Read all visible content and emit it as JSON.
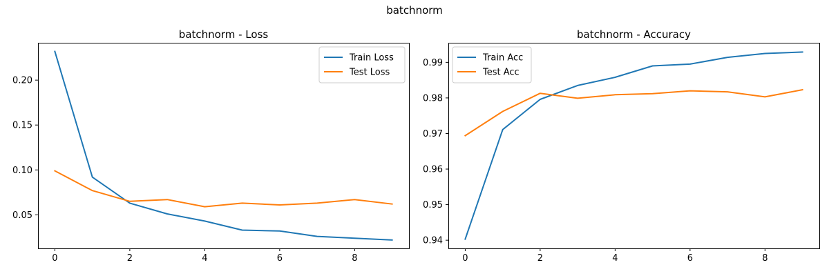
{
  "figure": {
    "title": "batchnorm"
  },
  "chart_data": [
    {
      "type": "line",
      "title": "batchnorm - Loss",
      "xlabel": "",
      "ylabel": "",
      "x": [
        0,
        1,
        2,
        3,
        4,
        5,
        6,
        7,
        8,
        9
      ],
      "xlim": [
        -0.45,
        9.45
      ],
      "ylim": [
        0.0126,
        0.2416
      ],
      "xticks": [
        0,
        2,
        4,
        6,
        8
      ],
      "yticks": [
        0.05,
        0.1,
        0.15,
        0.2
      ],
      "ytick_labels": [
        "0.05",
        "0.10",
        "0.15",
        "0.20"
      ],
      "grid": false,
      "legend_position": "upper right",
      "series": [
        {
          "name": "Train Loss",
          "color": "#1f77b4",
          "values": [
            0.232,
            0.092,
            0.063,
            0.051,
            0.043,
            0.033,
            0.032,
            0.026,
            0.024,
            0.022
          ]
        },
        {
          "name": "Test Loss",
          "color": "#ff7f0e",
          "values": [
            0.099,
            0.077,
            0.065,
            0.067,
            0.059,
            0.063,
            0.061,
            0.063,
            0.067,
            0.062
          ]
        }
      ]
    },
    {
      "type": "line",
      "title": "batchnorm - Accuracy",
      "xlabel": "",
      "ylabel": "",
      "x": [
        0,
        1,
        2,
        3,
        4,
        5,
        6,
        7,
        8,
        9
      ],
      "xlim": [
        -0.45,
        9.45
      ],
      "ylim": [
        0.9377,
        0.9955
      ],
      "xticks": [
        0,
        2,
        4,
        6,
        8
      ],
      "yticks": [
        0.94,
        0.95,
        0.96,
        0.97,
        0.98,
        0.99
      ],
      "ytick_labels": [
        "0.94",
        "0.95",
        "0.96",
        "0.97",
        "0.98",
        "0.99"
      ],
      "grid": false,
      "legend_position": "upper left",
      "series": [
        {
          "name": "Train Acc",
          "color": "#1f77b4",
          "values": [
            0.9403,
            0.9711,
            0.9796,
            0.9835,
            0.9858,
            0.989,
            0.9895,
            0.9914,
            0.9925,
            0.9929
          ]
        },
        {
          "name": "Test Acc",
          "color": "#ff7f0e",
          "values": [
            0.9694,
            0.9762,
            0.9813,
            0.9799,
            0.9809,
            0.9812,
            0.982,
            0.9817,
            0.9803,
            0.9823
          ]
        }
      ]
    }
  ]
}
